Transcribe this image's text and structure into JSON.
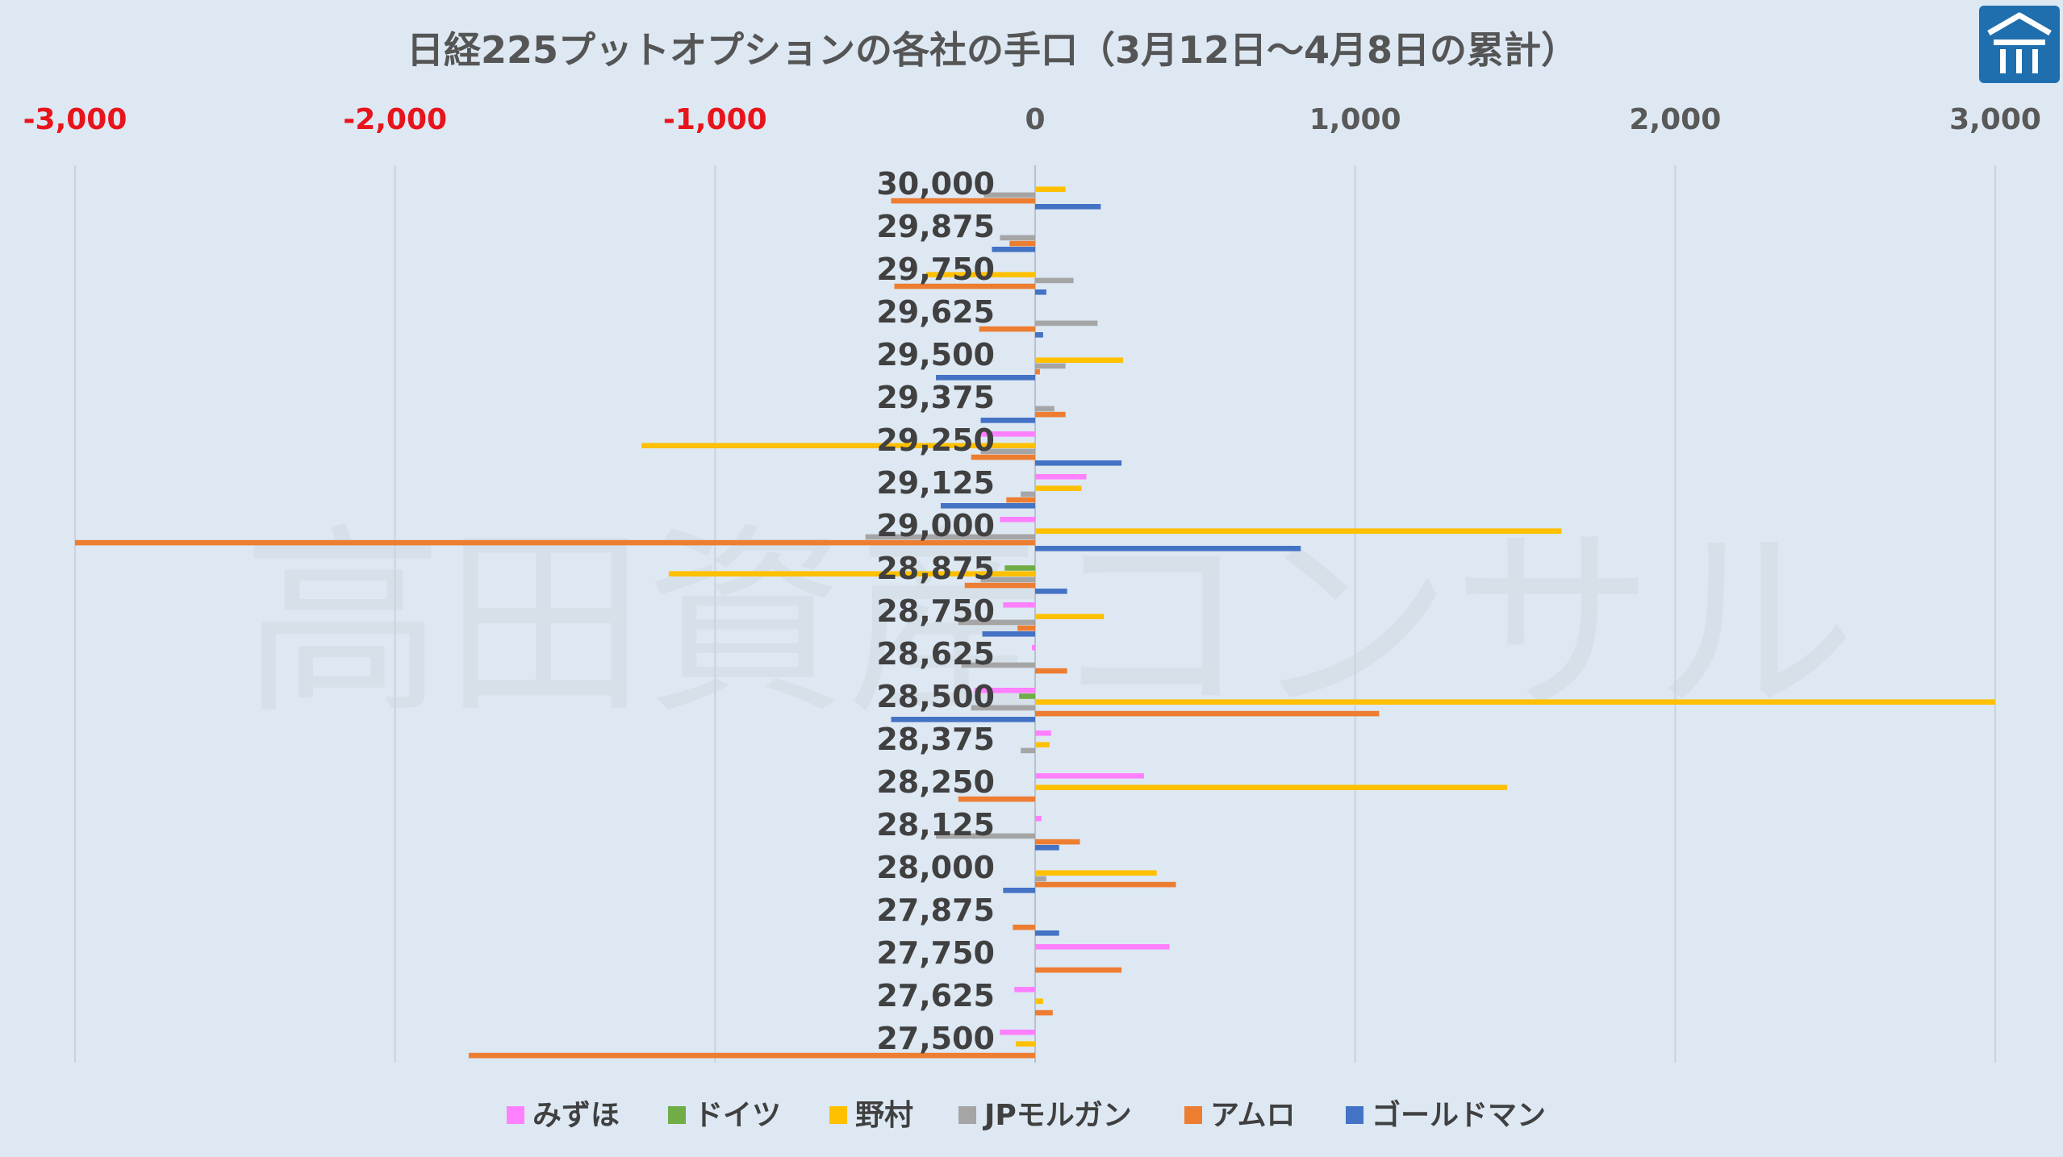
{
  "title": "日経225プットオプションの各社の手口（3月12日～4月8日の累計）",
  "watermark": "高田資産コンサル",
  "logo": {
    "colors": [
      "#1f6fae",
      "#ffffff"
    ]
  },
  "chart_data": {
    "type": "bar",
    "orientation": "horizontal",
    "title": "日経225プットオプションの各社の手口（3月12日～4月8日の累計）",
    "xlim": [
      -3000,
      3000
    ],
    "x_ticks": [
      -3000,
      -2000,
      -1000,
      0,
      1000,
      2000,
      3000
    ],
    "x_tick_labels": [
      "-3,000",
      "-2,000",
      "-1,000",
      "0",
      "1,000",
      "2,000",
      "3,000"
    ],
    "negative_tick_color": "#e8141b",
    "positive_tick_color": "#595959",
    "grid": true,
    "legend_position": "bottom",
    "categories": [
      "30,000",
      "29,875",
      "29,750",
      "29,625",
      "29,500",
      "29,375",
      "29,250",
      "29,125",
      "29,000",
      "28,875",
      "28,750",
      "28,625",
      "28,500",
      "28,375",
      "28,250",
      "28,125",
      "28,000",
      "27,875",
      "27,750",
      "27,625",
      "27,500"
    ],
    "series": [
      {
        "name": "みずほ",
        "color": "#ff80ff",
        "values": [
          0,
          0,
          0,
          0,
          0,
          0,
          -180,
          160,
          -110,
          0,
          -100,
          -10,
          -190,
          50,
          340,
          20,
          0,
          0,
          420,
          -65,
          -110
        ]
      },
      {
        "name": "ドイツ",
        "color": "#70ad47",
        "values": [
          0,
          0,
          0,
          0,
          0,
          0,
          0,
          0,
          0,
          -95,
          0,
          0,
          -50,
          0,
          0,
          0,
          0,
          0,
          0,
          0,
          0
        ]
      },
      {
        "name": "野村",
        "color": "#ffc000",
        "values": [
          95,
          0,
          -340,
          0,
          275,
          0,
          -1230,
          145,
          1645,
          -1145,
          215,
          0,
          3000,
          45,
          1475,
          0,
          380,
          0,
          0,
          25,
          -60
        ]
      },
      {
        "name": "JPモルガン",
        "color": "#a5a5a5",
        "values": [
          -160,
          -110,
          120,
          195,
          95,
          60,
          -170,
          -45,
          -530,
          -170,
          -240,
          -230,
          -200,
          -45,
          0,
          -310,
          35,
          0,
          0,
          0,
          0
        ]
      },
      {
        "name": "アムロ",
        "color": "#ed7d31",
        "values": [
          -450,
          -80,
          -440,
          -175,
          15,
          95,
          -200,
          -90,
          -3000,
          -220,
          -55,
          100,
          1075,
          0,
          -240,
          140,
          440,
          -70,
          270,
          55,
          -1770
        ]
      },
      {
        "name": "ゴールドマン",
        "color": "#4472c4",
        "values": [
          205,
          -135,
          35,
          25,
          -310,
          -170,
          270,
          -295,
          830,
          100,
          -165,
          0,
          -450,
          0,
          0,
          75,
          -100,
          75,
          0,
          0,
          0
        ]
      }
    ]
  }
}
